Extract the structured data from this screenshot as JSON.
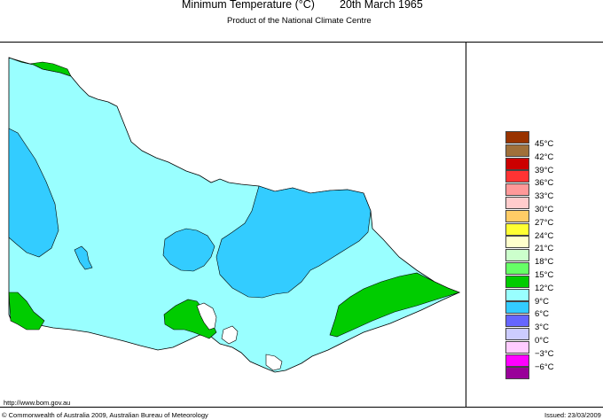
{
  "title": {
    "main": "Minimum Temperature (°C)",
    "date": "20th March 1965",
    "subtitle": "Product of the National Climate Centre"
  },
  "legend": {
    "items": [
      {
        "label": "45°C",
        "color": "#993300"
      },
      {
        "label": "42°C",
        "color": "#a0703a"
      },
      {
        "label": "39°C",
        "color": "#cc0000"
      },
      {
        "label": "36°C",
        "color": "#ff3333"
      },
      {
        "label": "33°C",
        "color": "#ff9999"
      },
      {
        "label": "30°C",
        "color": "#ffcccc"
      },
      {
        "label": "27°C",
        "color": "#ffcc66"
      },
      {
        "label": "24°C",
        "color": "#ffff33"
      },
      {
        "label": "21°C",
        "color": "#ffffcc"
      },
      {
        "label": "18°C",
        "color": "#ccffcc"
      },
      {
        "label": "15°C",
        "color": "#66ff66"
      },
      {
        "label": "12°C",
        "color": "#00cc00"
      },
      {
        "label": "9°C",
        "color": "#99ffff"
      },
      {
        "label": "6°C",
        "color": "#33ccff"
      },
      {
        "label": "3°C",
        "color": "#6666ff"
      },
      {
        "label": "0°C",
        "color": "#ccccff"
      },
      {
        "label": "−3°C",
        "color": "#ffccff"
      },
      {
        "label": "−6°C",
        "color": "#ff00ff"
      },
      {
        "label": "",
        "color": "#990099"
      }
    ]
  },
  "map_colors": {
    "land_9_12": "#99ffff",
    "land_6_9": "#33ccff",
    "land_12_15": "#00cc00",
    "sea": "#ffffff",
    "outline": "#000000"
  },
  "footer": {
    "url": "http://www.bom.gov.au",
    "copyright": "© Commonwealth of Australia 2009, Australian Bureau of Meteorology",
    "issued": "Issued: 23/03/2009"
  }
}
